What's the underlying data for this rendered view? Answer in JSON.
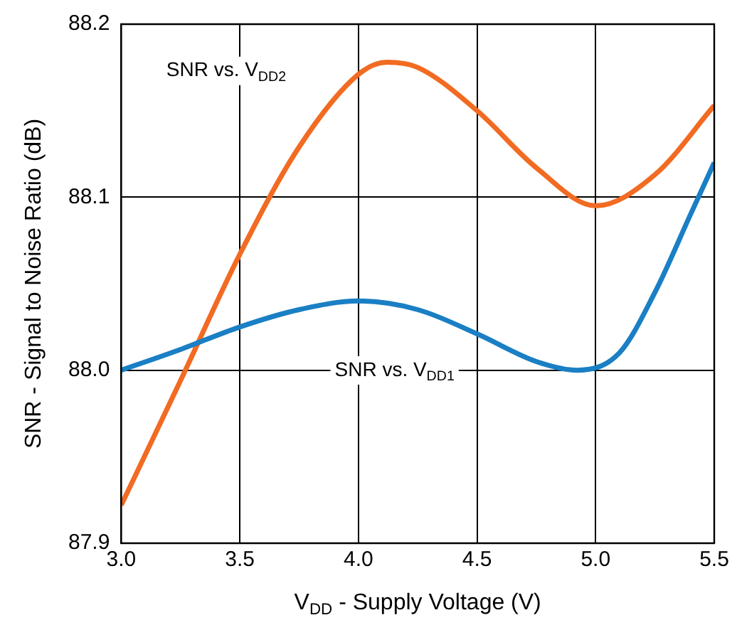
{
  "chart_data": {
    "type": "line",
    "xlabel": "V$_{DD}$ - Supply Voltage (V)",
    "ylabel": "SNR - Signal to Noise Ratio (dB)",
    "xlim": [
      3.0,
      5.5
    ],
    "xticks": [
      {
        "value": 3,
        "label": "3.0"
      },
      3.5,
      {
        "value": 4,
        "label": "4.0"
      },
      4.5,
      {
        "value": 5,
        "label": "5.0"
      },
      5.5
    ],
    "ylim": [
      87.9,
      88.2
    ],
    "yticks": [
      87.9,
      {
        "value": 88,
        "label": "88.0"
      },
      88.1,
      88.2
    ],
    "grid": true,
    "marker": "none",
    "line_style": "solid",
    "series": [
      {
        "name": "SNR vs. V$_{DD1}$",
        "color": "#1a7fc4",
        "x": [
          3.0,
          3.25,
          3.5,
          3.75,
          4.0,
          4.25,
          4.5,
          4.75,
          4.92,
          5.1,
          5.25,
          5.4,
          5.5
        ],
        "values": [
          88.0,
          88.012,
          88.025,
          88.035,
          88.04,
          88.035,
          88.021,
          88.005,
          88.0,
          88.01,
          88.045,
          88.09,
          88.12
        ]
      },
      {
        "name": "SNR vs. V$_{DD2}$",
        "color": "#f26b22",
        "x": [
          3.0,
          3.25,
          3.5,
          3.75,
          4.0,
          4.12,
          4.25,
          4.5,
          4.75,
          5.0,
          5.25,
          5.5
        ],
        "values": [
          87.922,
          87.994,
          88.067,
          88.129,
          88.171,
          88.178,
          88.175,
          88.15,
          88.117,
          88.095,
          88.113,
          88.153
        ]
      }
    ]
  }
}
